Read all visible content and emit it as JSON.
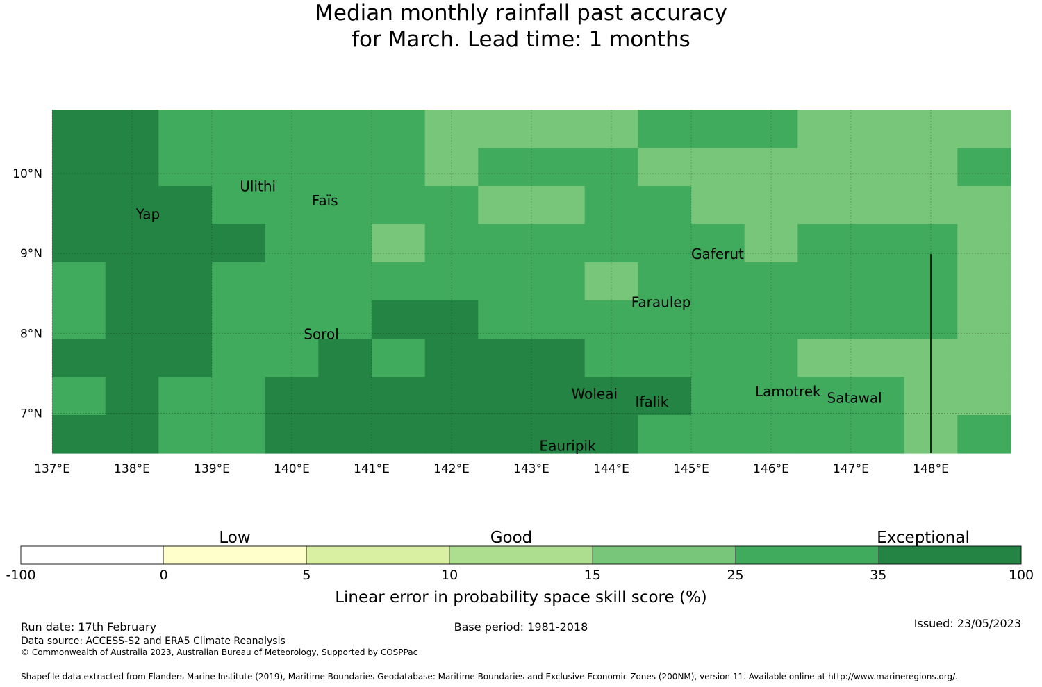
{
  "title": {
    "line1": "Median monthly rainfall past accuracy",
    "line2": "for March. Lead time: 1 months"
  },
  "map": {
    "lon_range": [
      137.0,
      149.0
    ],
    "lat_range": [
      6.5,
      10.8
    ],
    "lon_ticks": [
      {
        "value": 137,
        "label": "137°E"
      },
      {
        "value": 138,
        "label": "138°E"
      },
      {
        "value": 139,
        "label": "139°E"
      },
      {
        "value": 140,
        "label": "140°E"
      },
      {
        "value": 141,
        "label": "141°E"
      },
      {
        "value": 142,
        "label": "142°E"
      },
      {
        "value": 143,
        "label": "143°E"
      },
      {
        "value": 144,
        "label": "144°E"
      },
      {
        "value": 145,
        "label": "145°E"
      },
      {
        "value": 146,
        "label": "146°E"
      },
      {
        "value": 147,
        "label": "147°E"
      },
      {
        "value": 148,
        "label": "148°E"
      }
    ],
    "lat_ticks": [
      {
        "value": 10,
        "label": "10°N"
      },
      {
        "value": 9,
        "label": "9°N"
      },
      {
        "value": 8,
        "label": "8°N"
      },
      {
        "value": 7,
        "label": "7°N"
      }
    ],
    "place_labels": [
      {
        "name": "Yap",
        "lon": 138.05,
        "lat": 9.5
      },
      {
        "name": "Ulithi",
        "lon": 139.35,
        "lat": 9.85
      },
      {
        "name": "Faïs",
        "lon": 140.25,
        "lat": 9.67
      },
      {
        "name": "Gaferut",
        "lon": 145.0,
        "lat": 9.0
      },
      {
        "name": "Faraulep",
        "lon": 144.25,
        "lat": 8.4
      },
      {
        "name": "Sorol",
        "lon": 140.15,
        "lat": 8.0
      },
      {
        "name": "Woleai",
        "lon": 143.5,
        "lat": 7.25
      },
      {
        "name": "Ifalik",
        "lon": 144.3,
        "lat": 7.15
      },
      {
        "name": "Lamotrek",
        "lon": 145.8,
        "lat": 7.28
      },
      {
        "name": "Satawal",
        "lon": 146.7,
        "lat": 7.2
      },
      {
        "name": "Eauripik",
        "lon": 143.1,
        "lat": 6.6
      }
    ],
    "grid_rows_north_to_south": [
      [
        35,
        35,
        25,
        25,
        25,
        25,
        25,
        15,
        15,
        15,
        15,
        25,
        25,
        25,
        15,
        15,
        15,
        15
      ],
      [
        35,
        35,
        25,
        25,
        25,
        25,
        25,
        15,
        25,
        25,
        25,
        15,
        15,
        15,
        15,
        15,
        15,
        25
      ],
      [
        35,
        35,
        35,
        25,
        25,
        25,
        25,
        25,
        15,
        15,
        25,
        25,
        15,
        15,
        15,
        15,
        15,
        15
      ],
      [
        35,
        35,
        35,
        35,
        25,
        25,
        15,
        25,
        25,
        25,
        25,
        25,
        25,
        15,
        25,
        25,
        25,
        15
      ],
      [
        25,
        35,
        35,
        25,
        25,
        25,
        25,
        25,
        25,
        25,
        15,
        25,
        25,
        25,
        25,
        25,
        25,
        15
      ],
      [
        25,
        35,
        35,
        25,
        25,
        25,
        35,
        35,
        25,
        25,
        25,
        25,
        25,
        25,
        25,
        25,
        25,
        15
      ],
      [
        35,
        35,
        35,
        25,
        25,
        35,
        25,
        35,
        35,
        35,
        25,
        25,
        25,
        25,
        15,
        15,
        15,
        15
      ],
      [
        25,
        35,
        25,
        25,
        35,
        35,
        35,
        35,
        35,
        35,
        35,
        35,
        25,
        25,
        25,
        25,
        15,
        15
      ],
      [
        35,
        35,
        25,
        25,
        35,
        35,
        35,
        35,
        35,
        35,
        35,
        25,
        25,
        25,
        25,
        25,
        15,
        25
      ]
    ]
  },
  "colorbar": {
    "category_labels": [
      "Low",
      "Good",
      "Exceptional"
    ],
    "tick_labels": [
      "-100",
      "0",
      "5",
      "10",
      "15",
      "25",
      "35",
      "100"
    ],
    "colors": [
      "#ffffff",
      "#ffffcc",
      "#d9f0a3",
      "#addd8e",
      "#78c679",
      "#41ab5d",
      "#238443"
    ],
    "title": "Linear error in probability space skill score (%)"
  },
  "footer": {
    "run_date": "Run date: 17th February",
    "base_period": "Base period: 1981-2018",
    "issued": "Issued: 23/05/2023",
    "data_source": "Data source: ACCESS-S2 and ERA5 Climate Reanalysis",
    "copyright": "© Commonwealth of Australia 2023, Australian Bureau of Meteorology, Supported by COSPPac",
    "shapefile": "Shapefile data extracted from Flanders Marine Institute (2019), Maritime Boundaries Geodatabase: Maritime Boundaries and Exclusive Economic Zones (200NM), version 11. Available online at http://www.marineregions.org/."
  }
}
